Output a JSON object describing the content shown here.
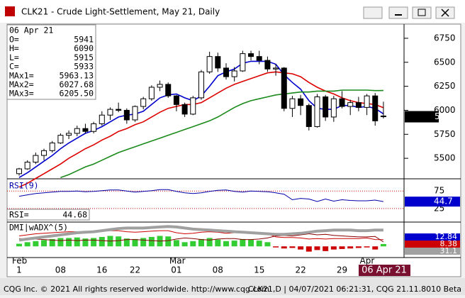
{
  "window": {
    "title": "CLK21 - Crude Light-Settlement, May 21, Daily"
  },
  "info": {
    "date": "06 Apr 21",
    "rows": [
      {
        "label": "O=",
        "value": "5941"
      },
      {
        "label": "H=",
        "value": "6090"
      },
      {
        "label": "L=",
        "value": "5915"
      },
      {
        "label": "C=",
        "value": "5933"
      },
      {
        "label": "MAx1=",
        "value": "5963.13"
      },
      {
        "label": "MAx2=",
        "value": "6027.68"
      },
      {
        "label": "MAx3=",
        "value": "6205.50"
      }
    ]
  },
  "chart_data": [
    {
      "type": "candlestick",
      "categories": [
        "1",
        null,
        null,
        null,
        null,
        "08",
        null,
        null,
        null,
        null,
        "16",
        null,
        null,
        null,
        "22",
        null,
        null,
        null,
        null,
        "01",
        null,
        null,
        null,
        null,
        "08",
        null,
        null,
        null,
        null,
        "15",
        null,
        null,
        null,
        null,
        "22",
        null,
        null,
        null,
        null,
        "29",
        null,
        null,
        null,
        null,
        null
      ],
      "months": [
        "Feb",
        null,
        null,
        null,
        null,
        null,
        null,
        null,
        null,
        null,
        null,
        null,
        null,
        null,
        null,
        null,
        null,
        null,
        null,
        "Mar",
        null,
        null,
        null,
        null,
        null,
        null,
        null,
        null,
        null,
        null,
        null,
        null,
        null,
        null,
        null,
        null,
        null,
        null,
        null,
        null,
        null,
        null,
        "Apr",
        null,
        null
      ],
      "cursor_label": "06 Apr 21",
      "ohlc": {
        "open": [
          5340,
          5390,
          5460,
          5530,
          5580,
          5660,
          5740,
          5760,
          5810,
          5780,
          5860,
          5950,
          6010,
          6000,
          5900,
          6040,
          6120,
          6240,
          6270,
          6150,
          6060,
          5960,
          6130,
          6400,
          6560,
          6440,
          6350,
          6410,
          6590,
          6560,
          6520,
          6430,
          6440,
          6020,
          6120,
          6050,
          5830,
          6140,
          5930,
          6120,
          6040,
          6080,
          6030,
          6150,
          5941
        ],
        "high": [
          5400,
          5480,
          5560,
          5600,
          5680,
          5760,
          5790,
          5840,
          5860,
          5880,
          5990,
          6030,
          6080,
          6020,
          6050,
          6140,
          6260,
          6310,
          6290,
          6160,
          6080,
          6150,
          6420,
          6610,
          6600,
          6490,
          6450,
          6620,
          6620,
          6620,
          6560,
          6480,
          6450,
          6150,
          6160,
          6070,
          6170,
          6160,
          6150,
          6200,
          6110,
          6140,
          6170,
          6180,
          6090
        ],
        "low": [
          5320,
          5380,
          5440,
          5480,
          5560,
          5650,
          5700,
          5730,
          5760,
          5760,
          5840,
          5900,
          5980,
          5860,
          5880,
          6010,
          6100,
          6200,
          6130,
          5990,
          5930,
          5950,
          6110,
          6380,
          6400,
          6320,
          6300,
          6400,
          6520,
          6480,
          6400,
          6360,
          5990,
          5930,
          5950,
          5790,
          5820,
          5890,
          5880,
          6020,
          5950,
          5990,
          5950,
          5840,
          5915
        ],
        "close": [
          5390,
          5460,
          5530,
          5580,
          5660,
          5740,
          5760,
          5810,
          5780,
          5860,
          5950,
          6010,
          6000,
          5900,
          6040,
          6120,
          6240,
          6270,
          6150,
          6060,
          5960,
          6130,
          6400,
          6560,
          6440,
          6350,
          6410,
          6590,
          6560,
          6520,
          6430,
          6440,
          6020,
          6120,
          6050,
          5830,
          6140,
          5930,
          6120,
          6040,
          6080,
          6030,
          6150,
          5890,
          5933
        ]
      },
      "up_color": "#ffffff",
      "down_color": "#000000",
      "series": [
        {
          "color": "#0000cc",
          "values": [
            5300,
            5350,
            5410,
            5470,
            5530,
            5600,
            5660,
            5710,
            5760,
            5790,
            5830,
            5880,
            5930,
            5950,
            5960,
            5990,
            6060,
            6130,
            6160,
            6170,
            6130,
            6100,
            6150,
            6250,
            6360,
            6400,
            6430,
            6490,
            6510,
            6510,
            6510,
            6480,
            6370,
            6290,
            6220,
            6100,
            6020,
            6010,
            6010,
            6050,
            6050,
            6030,
            6040,
            6020,
            5963.13
          ]
        },
        {
          "color": "#dd0000",
          "values": [
            5200,
            5240,
            5290,
            5340,
            5390,
            5440,
            5500,
            5550,
            5600,
            5640,
            5690,
            5730,
            5780,
            5810,
            5850,
            5880,
            5930,
            5980,
            6020,
            6040,
            6060,
            6060,
            6080,
            6130,
            6180,
            6230,
            6270,
            6300,
            6330,
            6360,
            6390,
            6400,
            6390,
            6380,
            6350,
            6290,
            6240,
            6200,
            6170,
            6130,
            6100,
            6080,
            6070,
            6060,
            6027.68
          ]
        },
        {
          "color": "#1a8a1a",
          "values": [
            null,
            null,
            null,
            null,
            null,
            5300,
            5330,
            5370,
            5410,
            5440,
            5480,
            5520,
            5560,
            5590,
            5620,
            5650,
            5680,
            5710,
            5740,
            5770,
            5800,
            5830,
            5860,
            5890,
            5930,
            5980,
            6030,
            6070,
            6100,
            6120,
            6140,
            6160,
            6170,
            6180,
            6190,
            6190,
            6200,
            6200,
            6200,
            6210,
            6210,
            6210,
            6210,
            6205,
            6205.5
          ]
        }
      ],
      "ylim": [
        5294,
        6890
      ],
      "yticks": [
        6750,
        6500,
        6250,
        6000,
        5750,
        5500
      ]
    },
    {
      "type": "line",
      "title": "RSI(9)",
      "value_title": "RSI=",
      "last_value_text": "44.68",
      "last_label": "44.7",
      "color": "#0000aa",
      "values": [
        60,
        64,
        68,
        70,
        72,
        74,
        74,
        75,
        73,
        74,
        76,
        78,
        78,
        75,
        72,
        74,
        76,
        79,
        79,
        74,
        70,
        68,
        70,
        74,
        77,
        78,
        74,
        72,
        75,
        74,
        73,
        70,
        66,
        50,
        54,
        52,
        45,
        52,
        46,
        50,
        48,
        47,
        47,
        49,
        44.68
      ],
      "ylim": [
        -12,
        106
      ],
      "yticks": [
        75,
        25
      ],
      "grid_color": "#cc0000"
    },
    {
      "type": "bar",
      "title": "DMI|wADX^(5)",
      "values": [
        5,
        8,
        10,
        12,
        14,
        16,
        16,
        17,
        15,
        16,
        18,
        20,
        19,
        15,
        14,
        16,
        18,
        20,
        19,
        12,
        8,
        10,
        14,
        16,
        13,
        10,
        11,
        14,
        13,
        11,
        8,
        -2,
        -4,
        -3,
        -6,
        -10,
        -7,
        -9,
        -6,
        -5,
        -4,
        -3,
        -2,
        -6,
        4.46
      ],
      "pos_color": "#33cc33",
      "neg_color": "#cc0000",
      "series": [
        {
          "color": "#cc0000",
          "width": 1,
          "label_bg": "#0000cc",
          "values": [
            20,
            22,
            24,
            25,
            26,
            27,
            28,
            28,
            27,
            28,
            29,
            30,
            30,
            28,
            27,
            28,
            29,
            30,
            30,
            26,
            24,
            25,
            27,
            28,
            27,
            25,
            26,
            27,
            26,
            25,
            24,
            18,
            17,
            17,
            16,
            14,
            15,
            14,
            15,
            15,
            15,
            15,
            16,
            13,
            12.84
          ]
        },
        {
          "color": "#880000",
          "width": 1,
          "label_bg": "#cc0000",
          "values": [
            15,
            14,
            14,
            13,
            12,
            11,
            12,
            11,
            12,
            12,
            11,
            10,
            11,
            13,
            13,
            12,
            11,
            10,
            11,
            14,
            16,
            15,
            13,
            12,
            14,
            15,
            15,
            13,
            13,
            14,
            16,
            20,
            21,
            20,
            22,
            24,
            22,
            23,
            21,
            20,
            19,
            18,
            18,
            19,
            8.38
          ]
        },
        {
          "color": "#a0a0a0",
          "width": 4,
          "label_bg": "#a0a0a0",
          "values": [
            12,
            14,
            16,
            18,
            20,
            22,
            24,
            26,
            27,
            28,
            30,
            32,
            34,
            35,
            35,
            35,
            36,
            37,
            38,
            37,
            35,
            33,
            32,
            31,
            30,
            29,
            28,
            27,
            26,
            25,
            24,
            23,
            23,
            24,
            25,
            27,
            29,
            30,
            31,
            31,
            31,
            30,
            30,
            31,
            31.1
          ]
        }
      ],
      "ylim": [
        -20,
        45
      ]
    }
  ],
  "footer": {
    "left": "CQG Inc. © 2021 All rights reserved worldwide. http://www.cqg.com",
    "right": "CLK21,D | 04/07/2021 06:21:31, CQG 21.11.8010 Beta"
  }
}
